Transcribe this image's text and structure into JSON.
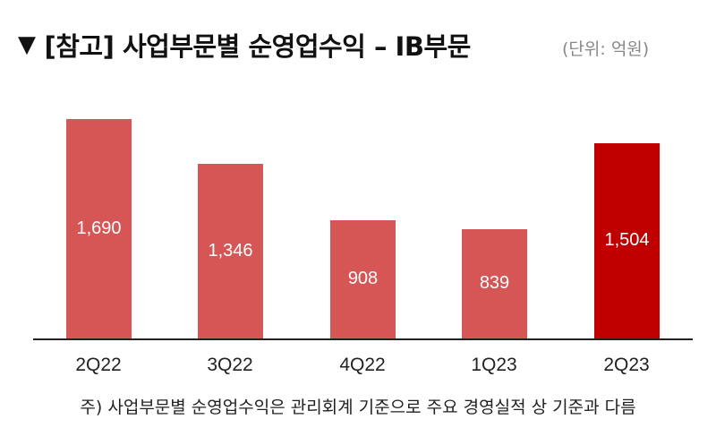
{
  "header": {
    "marker": "▼",
    "title": "[참고] 사업부문별 순영업수익 – IB부문",
    "unit": "(단위: 억원)"
  },
  "footnote": "주) 사업부문별 순영업수익은 관리회계 기준으로 주요 경영실적 상 기준과 다름",
  "colors": {
    "bar_default": "#d65555",
    "bar_highlight": "#c00000",
    "axis": "#222222"
  },
  "chart_data": {
    "type": "bar",
    "title": "[참고] 사업부문별 순영업수익 – IB부문",
    "unit": "억원",
    "xlabel": "",
    "ylabel": "",
    "categories": [
      "2Q22",
      "3Q22",
      "4Q22",
      "1Q23",
      "2Q23"
    ],
    "values": [
      1690,
      1346,
      908,
      839,
      1504
    ],
    "labels": [
      "1,690",
      "1,346",
      "908",
      "839",
      "1,504"
    ],
    "highlight_index": 4,
    "grid": false,
    "legend": "none",
    "ylim": [
      0,
      1800
    ]
  },
  "bars": [
    {
      "category": "2Q22",
      "label": "1,690"
    },
    {
      "category": "3Q22",
      "label": "1,346"
    },
    {
      "category": "4Q22",
      "label": "908"
    },
    {
      "category": "1Q23",
      "label": "839"
    },
    {
      "category": "2Q23",
      "label": "1,504"
    }
  ]
}
